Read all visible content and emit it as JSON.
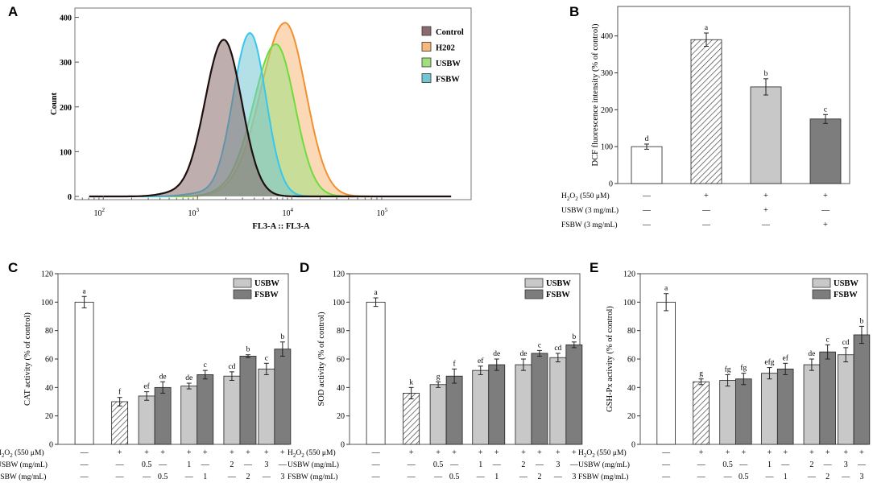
{
  "panel_labels": {
    "A": "A",
    "B": "B",
    "C": "C",
    "D": "D",
    "E": "E"
  },
  "colors": {
    "control": "#8b6c6c",
    "control_line": "#1e0f0f",
    "h2o2": "#f7b97a",
    "h2o2_line": "#f29032",
    "usbw": "#9fe07d",
    "usbw_line": "#6edc3d",
    "fsbw": "#74c5d4",
    "fsbw_line": "#35c7ee",
    "bar_light": "#c8c8c8",
    "bar_dark": "#7d7d7d"
  },
  "chart_data": [
    {
      "id": "A",
      "type": "area",
      "title": "",
      "xlabel": "FL3-A :: FL3-A",
      "ylabel": "Count",
      "xscale": "log",
      "xlim": [
        50,
        800000
      ],
      "ylim": [
        0,
        410
      ],
      "x_ticks": [
        {
          "value": 100,
          "base": "10",
          "exp": "2"
        },
        {
          "value": 1000,
          "base": "10",
          "exp": "3"
        },
        {
          "value": 10000,
          "base": "10",
          "exp": "4"
        },
        {
          "value": 100000,
          "base": "10",
          "exp": "5"
        }
      ],
      "y_ticks": [
        {
          "value": 0,
          "label": "0"
        },
        {
          "value": 100,
          "label": "100"
        },
        {
          "value": 200,
          "label": "200"
        },
        {
          "value": 300,
          "label": "300"
        },
        {
          "value": 400,
          "label": "400"
        }
      ],
      "legend_position": "top-right",
      "series": [
        {
          "key": "h2o2",
          "name": "H202",
          "peak_x": 8500,
          "peak_y": 388,
          "sigma_left": 0.26,
          "sigma_right": 0.22
        },
        {
          "key": "usbw",
          "name": "USBW",
          "peak_x": 6800,
          "peak_y": 340,
          "sigma_left": 0.24,
          "sigma_right": 0.2
        },
        {
          "key": "fsbw",
          "name": "FSBW",
          "peak_x": 3600,
          "peak_y": 365,
          "sigma_left": 0.18,
          "sigma_right": 0.17
        },
        {
          "key": "control",
          "name": "Control",
          "peak_x": 1900,
          "peak_y": 350,
          "sigma_left": 0.2,
          "sigma_right": 0.19
        }
      ],
      "legend_order": [
        "Control",
        "H202",
        "USBW",
        "FSBW"
      ]
    },
    {
      "id": "B",
      "type": "bar",
      "ylabel": "DCF fluorescence intensity (% of control)",
      "ylim": [
        0,
        480
      ],
      "y_ticks": [
        0,
        100,
        200,
        300,
        400
      ],
      "bars": [
        {
          "value": 100,
          "err": 7,
          "label": "d",
          "fill": "white"
        },
        {
          "value": 390,
          "err": 18,
          "label": "a",
          "fill": "hatch"
        },
        {
          "value": 262,
          "err": 22,
          "label": "b",
          "fill": "light"
        },
        {
          "value": 175,
          "err": 12,
          "label": "c",
          "fill": "dark"
        }
      ],
      "rows": [
        {
          "label_pre": "H",
          "label_sub": "2",
          "label_mid": "O",
          "label_sub2": "2",
          "label_post": " (550 μM)",
          "marks": [
            "—",
            "+",
            "+",
            "+"
          ]
        },
        {
          "label_pre": "USBW (3 mg/mL)",
          "marks": [
            "—",
            "—",
            "+",
            "—"
          ]
        },
        {
          "label_pre": "FSBW (3 mg/mL)",
          "marks": [
            "—",
            "—",
            "—",
            "+"
          ]
        }
      ]
    },
    {
      "id": "C",
      "type": "bar",
      "ylabel": "CAT activity (% of control)",
      "ylim": [
        0,
        120
      ],
      "y_ticks": [
        0,
        20,
        40,
        60,
        80,
        100,
        120
      ],
      "legend": [
        "USBW",
        "FSBW"
      ],
      "control": {
        "value": 100,
        "err": 4,
        "label": "a"
      },
      "h2o2": {
        "value": 30,
        "err": 3,
        "label": "f"
      },
      "usbw": [
        {
          "value": 34,
          "err": 3,
          "label": "ef"
        },
        {
          "value": 41,
          "err": 2,
          "label": "de"
        },
        {
          "value": 48,
          "err": 3,
          "label": "cd"
        },
        {
          "value": 53,
          "err": 4,
          "label": "c"
        }
      ],
      "fsbw": [
        {
          "value": 40,
          "err": 4,
          "label": "de"
        },
        {
          "value": 49,
          "err": 3,
          "label": "c"
        },
        {
          "value": 62,
          "err": 1,
          "label": "b"
        },
        {
          "value": 67,
          "err": 5,
          "label": "b"
        }
      ],
      "rows": [
        {
          "label_pre": "H",
          "label_sub": "2",
          "label_mid": "O",
          "label_sub2": "2",
          "label_post": " (550 μM)",
          "marks": [
            "—",
            "+",
            "+",
            "+",
            "+",
            "+",
            "+",
            "+",
            "+",
            "+"
          ]
        },
        {
          "label_pre": "USBW (mg/mL)",
          "marks": [
            "—",
            "—",
            "0.5",
            "—",
            "1",
            "—",
            "2",
            "—",
            "3",
            "—"
          ]
        },
        {
          "label_pre": "FSBW (mg/mL)",
          "marks": [
            "—",
            "—",
            "—",
            "0.5",
            "—",
            "1",
            "—",
            "2",
            "—",
            "3"
          ]
        }
      ]
    },
    {
      "id": "D",
      "type": "bar",
      "ylabel": "SOD activity (% of control)",
      "ylim": [
        0,
        120
      ],
      "y_ticks": [
        0,
        20,
        40,
        60,
        80,
        100,
        120
      ],
      "legend": [
        "USBW",
        "FSBW"
      ],
      "control": {
        "value": 100,
        "err": 3,
        "label": "a"
      },
      "h2o2": {
        "value": 36,
        "err": 4,
        "label": "k"
      },
      "usbw": [
        {
          "value": 42,
          "err": 2,
          "label": "g"
        },
        {
          "value": 52,
          "err": 3,
          "label": "ef"
        },
        {
          "value": 56,
          "err": 4,
          "label": "de"
        },
        {
          "value": 61,
          "err": 3,
          "label": "cd"
        }
      ],
      "fsbw": [
        {
          "value": 48,
          "err": 5,
          "label": "f"
        },
        {
          "value": 56,
          "err": 4,
          "label": "de"
        },
        {
          "value": 64,
          "err": 2,
          "label": "c"
        },
        {
          "value": 70,
          "err": 2,
          "label": "b"
        }
      ],
      "rows": [
        {
          "label_pre": "H",
          "label_sub": "2",
          "label_mid": "O",
          "label_sub2": "2",
          "label_post": " (550 μM)",
          "marks": [
            "—",
            "+",
            "+",
            "+",
            "+",
            "+",
            "+",
            "+",
            "+",
            "+"
          ]
        },
        {
          "label_pre": "USBW (mg/mL)",
          "marks": [
            "—",
            "—",
            "0.5",
            "—",
            "1",
            "—",
            "2",
            "—",
            "3",
            "—"
          ]
        },
        {
          "label_pre": "FSBW (mg/mL)",
          "marks": [
            "—",
            "—",
            "—",
            "0.5",
            "—",
            "1",
            "—",
            "2",
            "—",
            "3"
          ]
        }
      ]
    },
    {
      "id": "E",
      "type": "bar",
      "ylabel": "GSH-Px activity (% of control)",
      "ylim": [
        0,
        120
      ],
      "y_ticks": [
        0,
        20,
        40,
        60,
        80,
        100,
        120
      ],
      "legend": [
        "USBW",
        "FSBW"
      ],
      "control": {
        "value": 100,
        "err": 6,
        "label": "a"
      },
      "h2o2": {
        "value": 44,
        "err": 2,
        "label": "g"
      },
      "usbw": [
        {
          "value": 45,
          "err": 4,
          "label": "fg"
        },
        {
          "value": 50,
          "err": 4,
          "label": "efg"
        },
        {
          "value": 56,
          "err": 4,
          "label": "de"
        },
        {
          "value": 63,
          "err": 5,
          "label": "cd"
        }
      ],
      "fsbw": [
        {
          "value": 46,
          "err": 4,
          "label": "fg"
        },
        {
          "value": 53,
          "err": 4,
          "label": "ef"
        },
        {
          "value": 65,
          "err": 5,
          "label": "c"
        },
        {
          "value": 77,
          "err": 6,
          "label": "b"
        }
      ],
      "rows": [
        {
          "label_pre": "H",
          "label_sub": "2",
          "label_mid": "O",
          "label_sub2": "2",
          "label_post": " (550 μM)",
          "marks": [
            "—",
            "+",
            "+",
            "+",
            "+",
            "+",
            "+",
            "+",
            "+",
            "+"
          ]
        },
        {
          "label_pre": "USBW (mg/mL)",
          "marks": [
            "—",
            "—",
            "0.5",
            "—",
            "1",
            "—",
            "2",
            "—",
            "3",
            "—"
          ]
        },
        {
          "label_pre": "FSBW (mg/mL)",
          "marks": [
            "—",
            "—",
            "—",
            "0.5",
            "—",
            "1",
            "—",
            "2",
            "—",
            "3"
          ]
        }
      ]
    }
  ]
}
